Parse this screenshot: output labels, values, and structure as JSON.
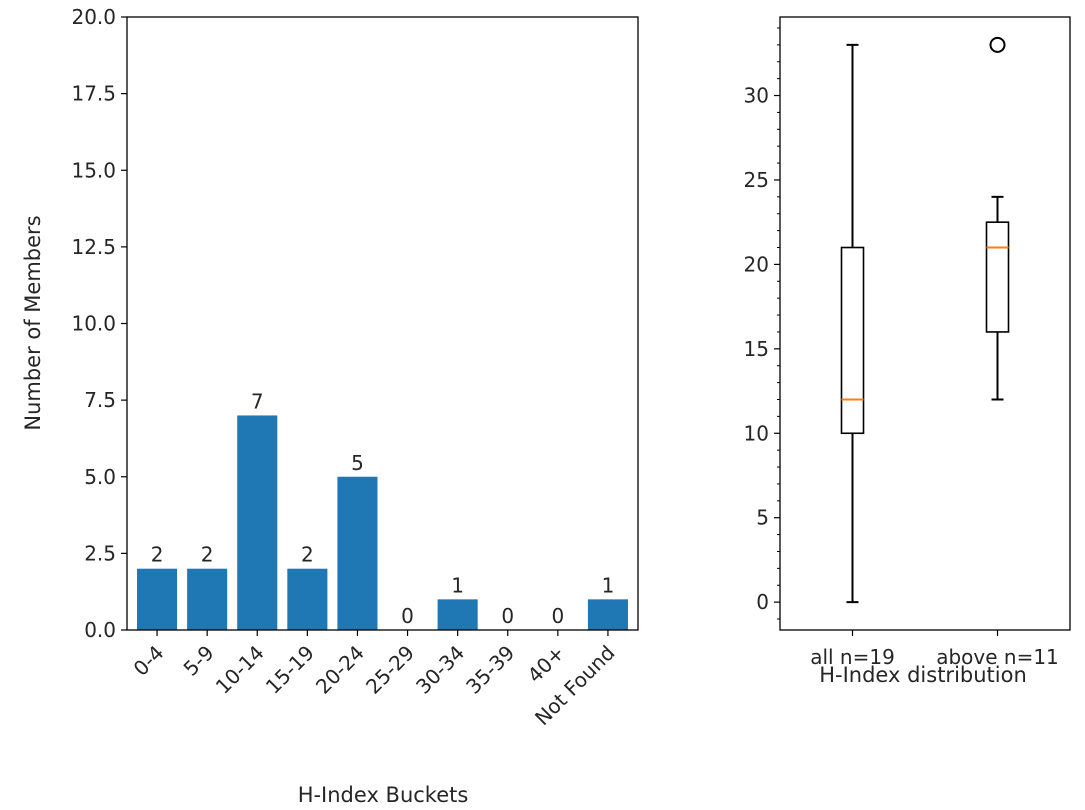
{
  "chart_data": [
    {
      "type": "bar",
      "categories": [
        "0-4",
        "5-9",
        "10-14",
        "15-19",
        "20-24",
        "25-29",
        "30-34",
        "35-39",
        "40+",
        "Not Found"
      ],
      "values": [
        2,
        2,
        7,
        2,
        5,
        0,
        1,
        0,
        0,
        1
      ],
      "data_labels": [
        "2",
        "2",
        "7",
        "2",
        "5",
        "0",
        "1",
        "0",
        "0",
        "1"
      ],
      "xlabel": "H-Index Buckets",
      "ylabel": "Number of Members",
      "ylim": [
        0,
        20
      ],
      "yticks": [
        "0.0",
        "2.5",
        "5.0",
        "7.5",
        "10.0",
        "12.5",
        "15.0",
        "17.5",
        "20.0"
      ],
      "color": "#1f77b4",
      "grid": false
    },
    {
      "type": "box",
      "categories": [
        "all n=19",
        "above n=11"
      ],
      "boxes": [
        {
          "whisker_low": 0,
          "q1": 10,
          "median": 12,
          "q3": 21,
          "whisker_high": 33,
          "outliers": []
        },
        {
          "whisker_low": 12,
          "q1": 16,
          "median": 21,
          "q3": 22.5,
          "whisker_high": 24,
          "outliers": [
            33
          ]
        }
      ],
      "xlabel": "H-Index distribution",
      "ylabel": "",
      "ylim": [
        -1.65,
        34.65
      ],
      "yticks": [
        "0",
        "5",
        "10",
        "15",
        "20",
        "25",
        "30"
      ],
      "median_color": "#ff7f0e",
      "grid": false
    }
  ]
}
